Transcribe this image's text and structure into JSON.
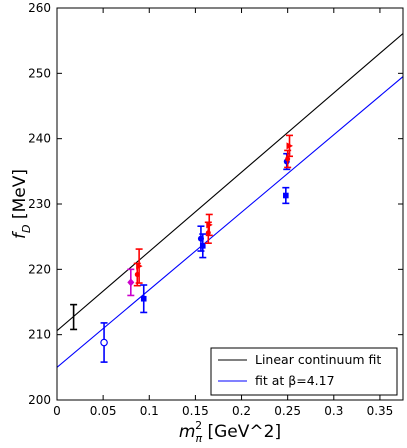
{
  "chart_data": {
    "type": "scatter",
    "title": "",
    "xlabel_main": "m",
    "xlabel_sub": "π",
    "xlabel_sup": "2",
    "xlabel_unit": " [GeV^2]",
    "ylabel_main": "f",
    "ylabel_sub": "D",
    "ylabel_unit": " [MeV]",
    "xlim": [
      0,
      0.375
    ],
    "ylim": [
      200,
      260
    ],
    "xticks": [
      0,
      0.05,
      0.1,
      0.15,
      0.2,
      0.25,
      0.3,
      0.35
    ],
    "xtick_labels": [
      "0",
      "0.05",
      "0.1",
      "0.15",
      "0.2",
      "0.25",
      "0.3",
      "0.35"
    ],
    "yticks": [
      200,
      210,
      220,
      230,
      240,
      250,
      260
    ],
    "ytick_labels": [
      "200",
      "210",
      "220",
      "230",
      "240",
      "250",
      "260"
    ],
    "grid": false,
    "legend_position": "lower-right",
    "lines": [
      {
        "name": "Linear continuum fit",
        "color": "#000000",
        "x": [
          0,
          0.375
        ],
        "y": [
          210.6,
          256.1
        ]
      },
      {
        "name": "fit at β=4.17",
        "color": "#0000ff",
        "x": [
          0,
          0.375
        ],
        "y": [
          205.0,
          249.5
        ]
      }
    ],
    "points": [
      {
        "x": 0.018,
        "y": 212.7,
        "err": 1.9,
        "color": "#000000",
        "marker": "none"
      },
      {
        "x": 0.051,
        "y": 208.8,
        "err": 3.0,
        "color": "#0000ff",
        "marker": "open-circle"
      },
      {
        "x": 0.08,
        "y": 218.0,
        "err": 2.0,
        "color": "#cc00cc",
        "marker": "diamond"
      },
      {
        "x": 0.087,
        "y": 219.2,
        "err": 1.7,
        "color": "#ff0000",
        "marker": "dot"
      },
      {
        "x": 0.089,
        "y": 220.5,
        "err": 2.6,
        "color": "#ff0000",
        "marker": "right-triangle"
      },
      {
        "x": 0.094,
        "y": 215.5,
        "err": 2.1,
        "color": "#0000ff",
        "marker": "square"
      },
      {
        "x": 0.156,
        "y": 224.7,
        "err": 1.9,
        "color": "#0000ff",
        "marker": "circle"
      },
      {
        "x": 0.158,
        "y": 223.6,
        "err": 1.8,
        "color": "#0000ff",
        "marker": "square"
      },
      {
        "x": 0.164,
        "y": 225.6,
        "err": 1.6,
        "color": "#ff0000",
        "marker": "dot"
      },
      {
        "x": 0.165,
        "y": 226.8,
        "err": 1.6,
        "color": "#ff0000",
        "marker": "right-triangle"
      },
      {
        "x": 0.248,
        "y": 231.3,
        "err": 1.2,
        "color": "#0000ff",
        "marker": "square"
      },
      {
        "x": 0.249,
        "y": 236.5,
        "err": 1.2,
        "color": "#0000ff",
        "marker": "circle"
      },
      {
        "x": 0.25,
        "y": 236.9,
        "err": 1.3,
        "color": "#ff0000",
        "marker": "dot"
      },
      {
        "x": 0.252,
        "y": 238.9,
        "err": 1.6,
        "color": "#ff0000",
        "marker": "right-triangle"
      }
    ]
  }
}
